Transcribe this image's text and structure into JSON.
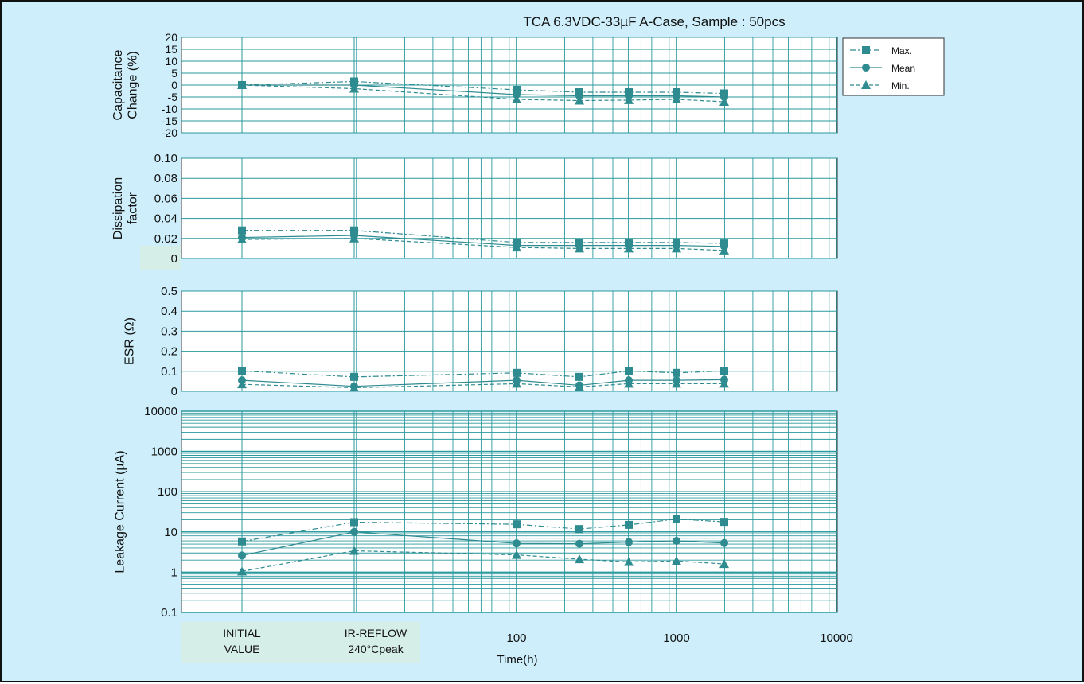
{
  "chart_data": {
    "title": "TCA 6.3VDC-33µF A-Case, Sample : 50pcs",
    "type": "line",
    "x_axis": {
      "label": "Time(h)",
      "scale": "log",
      "range": [
        10,
        10000
      ],
      "category_labels": [
        {
          "lines": [
            "INITIAL",
            "VALUE"
          ]
        },
        {
          "lines": [
            "IR-REFLOW",
            "240°Cpeak"
          ]
        }
      ],
      "tick_labels": [
        "100",
        "1000",
        "10000"
      ]
    },
    "x_points": [
      "INITIAL VALUE",
      "IR-REFLOW 240°Cpeak",
      "100",
      "250",
      "500",
      "1000",
      "2000"
    ],
    "legend": {
      "position": "top-right",
      "items": [
        "Max.",
        "Mean",
        "Min."
      ]
    },
    "panels": [
      {
        "ylabel": [
          "Capacitance",
          "Change (%)"
        ],
        "yscale": "linear",
        "ylim": [
          -20,
          20
        ],
        "ytick_labels": [
          "20",
          "15",
          "10",
          "5",
          "0",
          "-5",
          "-10",
          "-15",
          "-20"
        ],
        "series": [
          {
            "values": [
              0,
              1.5,
              -2,
              -3,
              -3,
              -3,
              -3.5
            ]
          },
          {
            "values": [
              0,
              0,
              -4,
              -4.5,
              -4.5,
              -4.5,
              -5
            ]
          },
          {
            "values": [
              0,
              -1.5,
              -6,
              -6.5,
              -6.3,
              -6,
              -7
            ]
          }
        ]
      },
      {
        "ylabel": [
          "Dissipation",
          "factor"
        ],
        "yscale": "linear",
        "ylim": [
          0,
          0.1
        ],
        "ytick_labels": [
          "0.10",
          "0.08",
          "0.06",
          "0.04",
          "0.02",
          "0"
        ],
        "series": [
          {
            "values": [
              0.028,
              0.028,
              0.016,
              0.016,
              0.016,
              0.016,
              0.015
            ]
          },
          {
            "values": [
              0.021,
              0.023,
              0.013,
              0.013,
              0.013,
              0.013,
              0.012
            ]
          },
          {
            "values": [
              0.019,
              0.02,
              0.011,
              0.01,
              0.01,
              0.01,
              0.008
            ]
          }
        ]
      },
      {
        "ylabel": [
          "ESR (Ω)"
        ],
        "yscale": "linear",
        "ylim": [
          0,
          0.5
        ],
        "ytick_labels": [
          "0.5",
          "0.4",
          "0.3",
          "0.2",
          "0.1",
          "0"
        ],
        "series": [
          {
            "values": [
              0.102,
              0.072,
              0.092,
              0.072,
              0.102,
              0.092,
              0.102
            ]
          },
          {
            "values": [
              0.055,
              0.025,
              0.055,
              0.03,
              0.055,
              0.055,
              0.058
            ]
          },
          {
            "values": [
              0.035,
              0.018,
              0.038,
              0.022,
              0.038,
              0.038,
              0.038
            ]
          }
        ]
      },
      {
        "ylabel": [
          "Leakage Current (µA)"
        ],
        "yscale": "log",
        "ylim": [
          0.1,
          10000
        ],
        "ytick_labels": [
          "10000",
          "1000",
          "100",
          "10",
          "1",
          "0.1"
        ],
        "series": [
          {
            "values": [
              5.8,
              17.5,
              15.5,
              11.8,
              15,
              21,
              17.8
            ]
          },
          {
            "values": [
              2.6,
              10,
              5.2,
              5.1,
              5.6,
              6,
              5.3
            ]
          },
          {
            "values": [
              1.05,
              3.4,
              2.7,
              2.1,
              1.8,
              1.9,
              1.6
            ]
          }
        ]
      }
    ],
    "colors": {
      "background": "#cdeefa",
      "plot_background": "#ffffff",
      "grid": "#2a9a9e",
      "series": "#2e8b8f",
      "label_box": "#d6eee8"
    }
  }
}
